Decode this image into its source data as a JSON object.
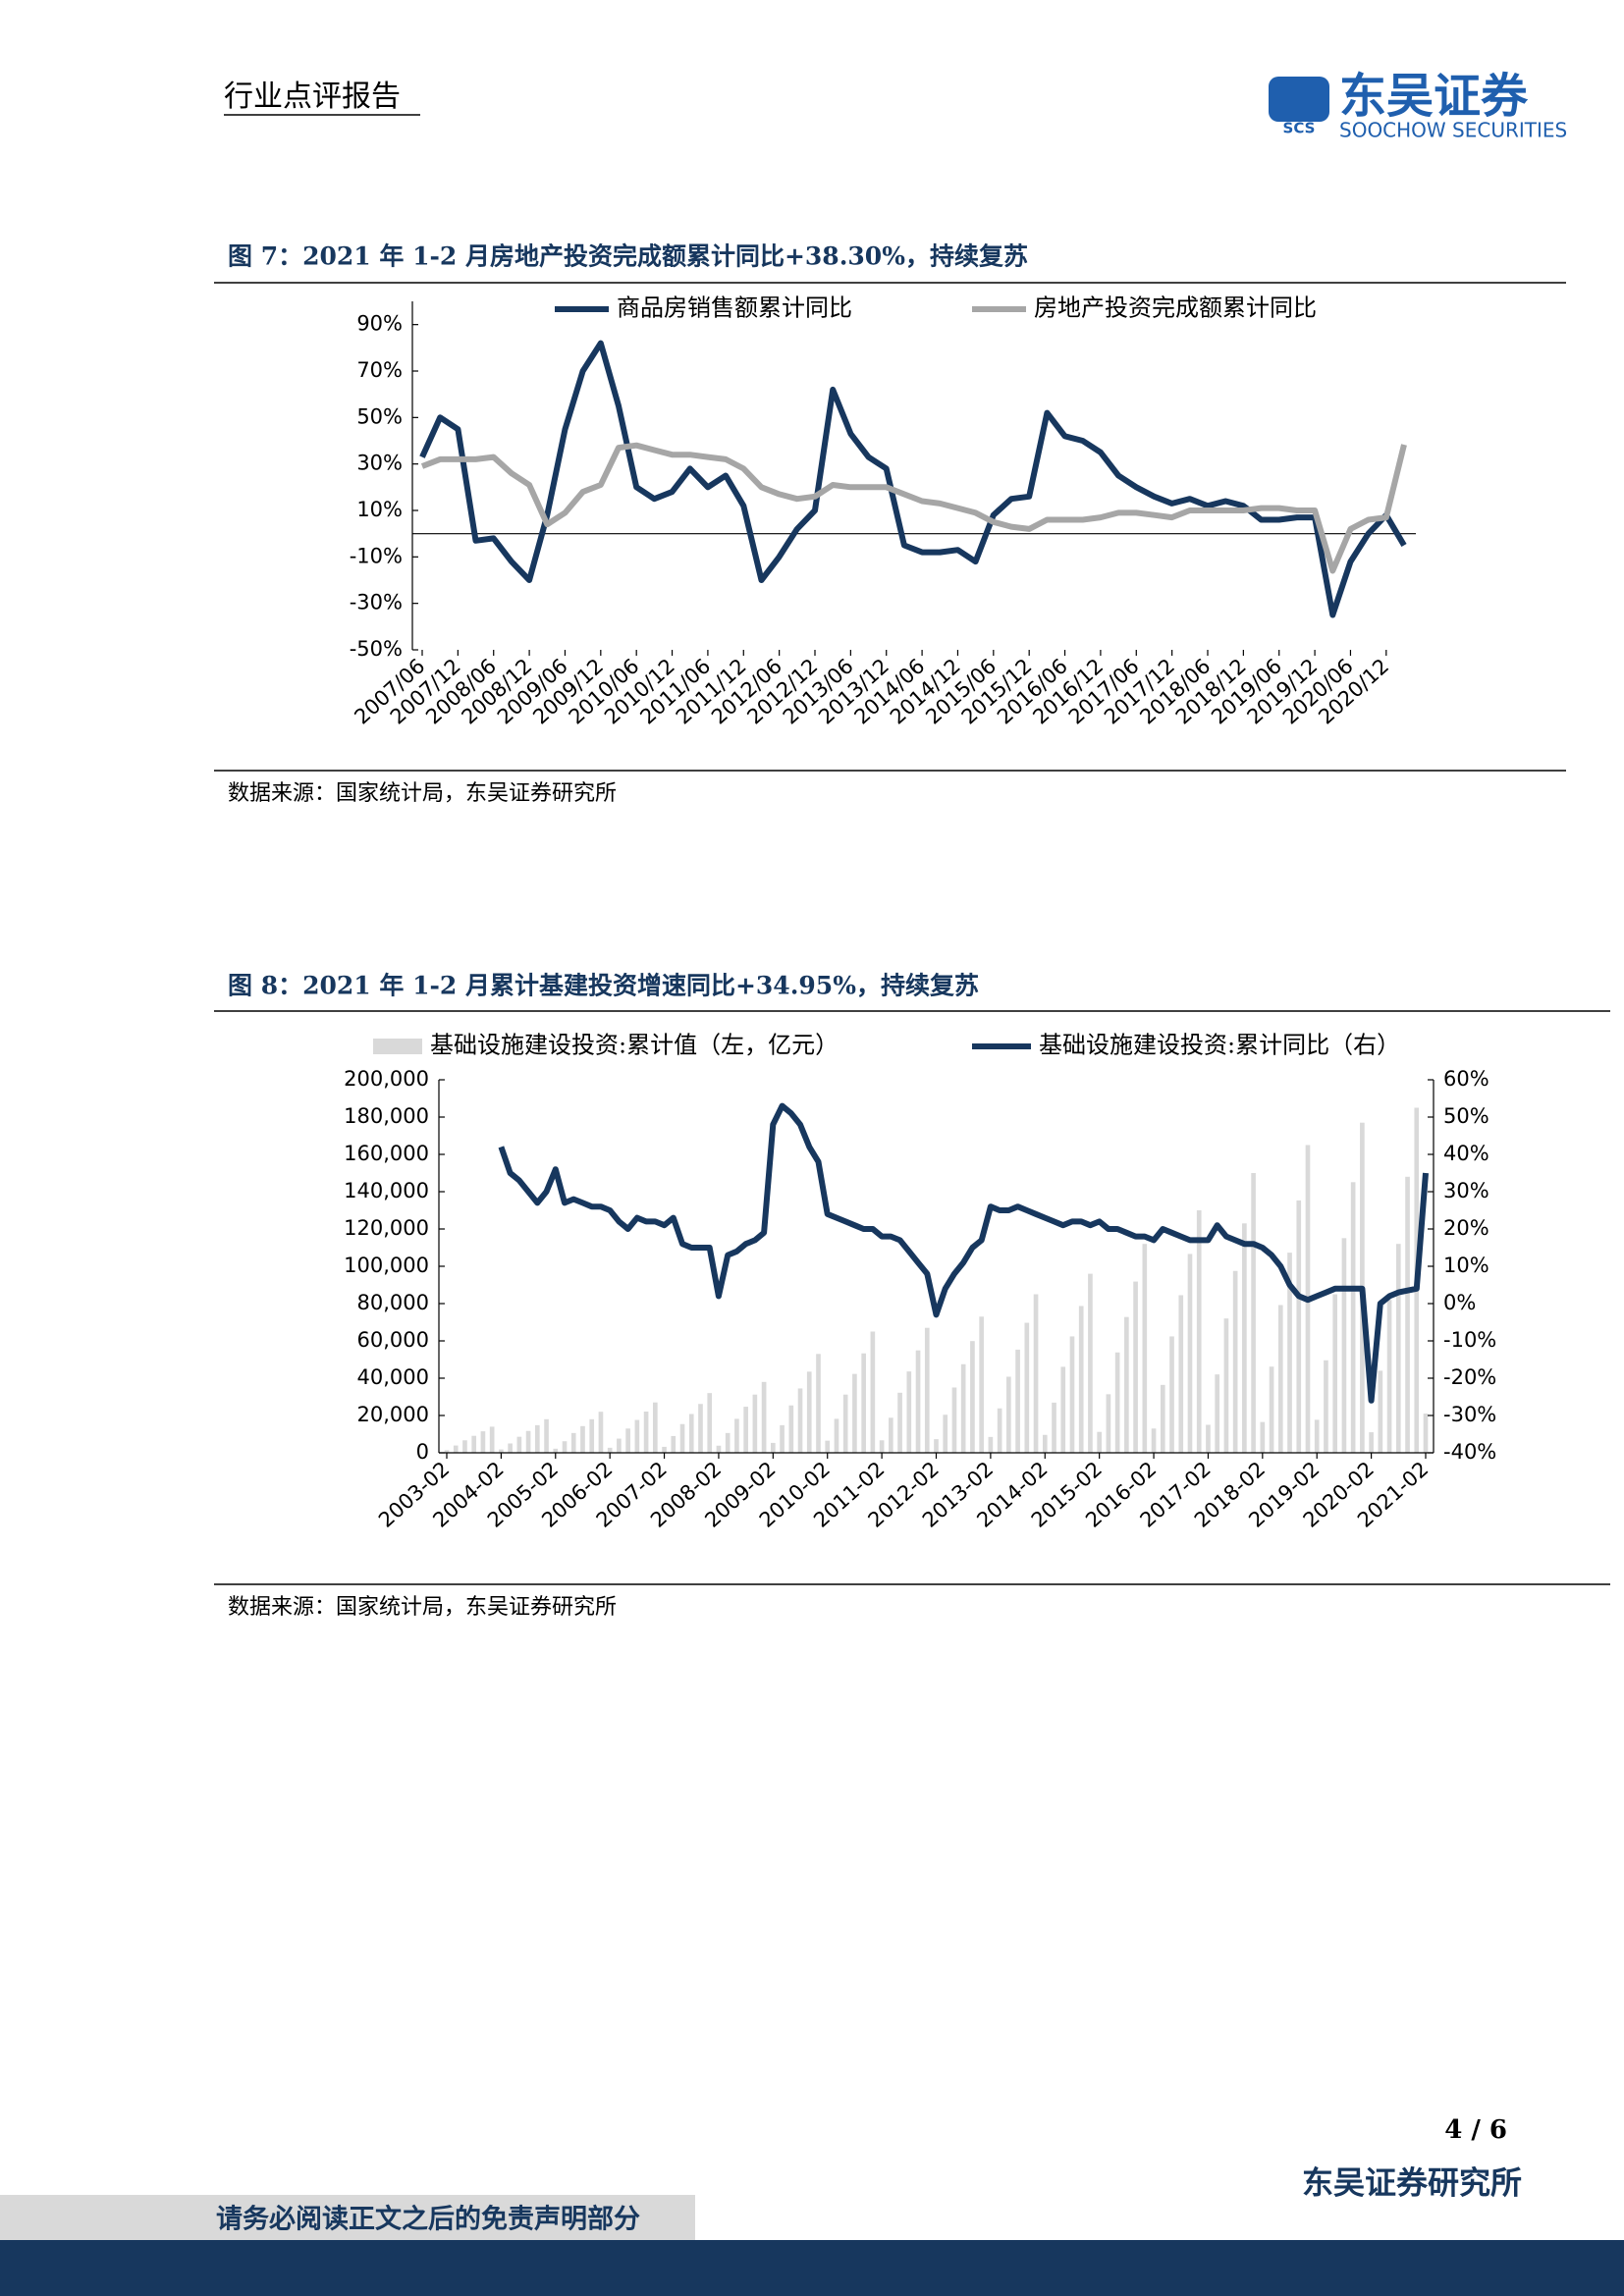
{
  "header": {
    "report_type": "行业点评报告",
    "logo_abbr": "SCS",
    "logo_cn": "东吴证券",
    "logo_en": "SOOCHOW SECURITIES"
  },
  "chart_data": [
    {
      "type": "line",
      "title": "图 7：2021 年 1-2 月房地产投资完成额累计同比+38.30%，持续复苏",
      "source": "数据来源：国家统计局，东吴证券研究所",
      "categories": [
        "2007/06",
        null,
        "2007/12",
        null,
        "2008/06",
        null,
        "2008/12",
        null,
        "2009/06",
        null,
        "2009/12",
        null,
        "2010/06",
        null,
        "2010/12",
        null,
        "2011/06",
        null,
        "2011/12",
        null,
        "2012/06",
        null,
        "2012/12",
        null,
        "2013/06",
        null,
        "2013/12",
        null,
        "2014/06",
        null,
        "2014/12",
        null,
        "2015/06",
        null,
        "2015/12",
        null,
        "2016/06",
        null,
        "2016/12",
        null,
        "2017/06",
        null,
        "2017/12",
        null,
        "2018/06",
        null,
        "2018/12",
        null,
        "2019/06",
        null,
        "2019/12",
        null,
        "2020/06",
        null,
        "2020/12",
        null
      ],
      "series": [
        {
          "name": "商品房销售额累计同比",
          "color": "#17375e",
          "values": [
            33,
            50,
            45,
            -3,
            -2,
            -12,
            -20,
            8,
            45,
            70,
            82,
            55,
            20,
            15,
            18,
            28,
            20,
            25,
            12,
            -20,
            -10,
            2,
            10,
            62,
            43,
            33,
            28,
            -5,
            -8,
            -8,
            -7,
            -12,
            8,
            15,
            16,
            52,
            42,
            40,
            35,
            25,
            20,
            16,
            13,
            15,
            12,
            14,
            12,
            6,
            6,
            7,
            7,
            -35,
            -12,
            0,
            8,
            -5
          ]
        },
        {
          "name": "房地产投资完成额累计同比",
          "color": "#a6a6a6",
          "values": [
            29,
            32,
            32,
            32,
            33,
            26,
            21,
            4,
            9,
            18,
            21,
            37,
            38,
            36,
            34,
            34,
            33,
            32,
            28,
            20,
            17,
            15,
            16,
            21,
            20,
            20,
            20,
            17,
            14,
            13,
            11,
            9,
            5,
            3,
            2,
            6,
            6,
            6,
            7,
            9,
            9,
            8,
            7,
            10,
            10,
            10,
            10,
            11,
            11,
            10,
            10,
            -16,
            2,
            6,
            7,
            38.3
          ]
        }
      ],
      "ylim": [
        -50,
        100
      ],
      "yticks": [
        {
          "value": -50,
          "label": "-50%"
        },
        {
          "value": -30,
          "label": "-30%"
        },
        {
          "value": -10,
          "label": "-10%"
        },
        {
          "value": 10,
          "label": "10%"
        },
        {
          "value": 30,
          "label": "30%"
        },
        {
          "value": 50,
          "label": "50%"
        },
        {
          "value": 70,
          "label": "70%"
        },
        {
          "value": 90,
          "label": "90%"
        }
      ],
      "grid": false
    },
    {
      "type": "combo",
      "title": "图 8：2021 年 1-2 月累计基建投资增速同比+34.95%，持续复苏",
      "source": "数据来源：国家统计局，东吴证券研究所",
      "categories": [
        "2003-02",
        null,
        null,
        null,
        null,
        null,
        "2004-02",
        null,
        null,
        null,
        null,
        null,
        "2005-02",
        null,
        null,
        null,
        null,
        null,
        "2006-02",
        null,
        null,
        null,
        null,
        null,
        "2007-02",
        null,
        null,
        null,
        null,
        null,
        "2008-02",
        null,
        null,
        null,
        null,
        null,
        "2009-02",
        null,
        null,
        null,
        null,
        null,
        "2010-02",
        null,
        null,
        null,
        null,
        null,
        "2011-02",
        null,
        null,
        null,
        null,
        null,
        "2012-02",
        null,
        null,
        null,
        null,
        null,
        "2013-02",
        null,
        null,
        null,
        null,
        null,
        "2014-02",
        null,
        null,
        null,
        null,
        null,
        "2015-02",
        null,
        null,
        null,
        null,
        null,
        "2016-02",
        null,
        null,
        null,
        null,
        null,
        "2017-02",
        null,
        null,
        null,
        null,
        null,
        "2018-02",
        null,
        null,
        null,
        null,
        null,
        "2019-02",
        null,
        null,
        null,
        null,
        null,
        "2020-02",
        null,
        null,
        null,
        null,
        null,
        "2021-02"
      ],
      "series": [
        {
          "name": "基础设施建设投资:累计值（左，亿元）",
          "type": "bar",
          "color": "#d9d9d9",
          "values": [
            1400,
            3900,
            6700,
            9100,
            11500,
            14000,
            1800,
            5000,
            8600,
            11700,
            14800,
            18000,
            2200,
            6200,
            10600,
            14300,
            18000,
            22000,
            2700,
            7600,
            13000,
            17600,
            22100,
            27000,
            3200,
            9000,
            15400,
            20800,
            26200,
            32000,
            3800,
            10600,
            18200,
            24700,
            31200,
            38000,
            5300,
            14800,
            25400,
            34500,
            43500,
            53000,
            6500,
            18200,
            31200,
            42300,
            53300,
            65000,
            6700,
            18800,
            32200,
            43600,
            54900,
            67000,
            7300,
            20400,
            35000,
            47500,
            59900,
            73000,
            8500,
            23800,
            40800,
            55300,
            69700,
            85000,
            9600,
            26900,
            46100,
            62400,
            78700,
            96000,
            11200,
            31400,
            53800,
            72800,
            91800,
            112000,
            13000,
            36400,
            62400,
            84500,
            106600,
            130000,
            15000,
            42000,
            72000,
            97500,
            123000,
            150000,
            16500,
            46200,
            79200,
            107300,
            135300,
            165000,
            17700,
            49600,
            85000,
            115100,
            145100,
            177000,
            11000,
            44000,
            82000,
            112000,
            148000,
            185000,
            21000
          ]
        },
        {
          "name": "基础设施建设投资:累计同比（右）",
          "type": "line",
          "axis": "y2",
          "color": "#17375e",
          "values": [
            null,
            null,
            null,
            null,
            null,
            null,
            42,
            35,
            33,
            30,
            27,
            30,
            36,
            27,
            28,
            27,
            26,
            26,
            25,
            22,
            20,
            23,
            22,
            22,
            21,
            23,
            16,
            15,
            15,
            15,
            2,
            13,
            14,
            16,
            17,
            19,
            48,
            53,
            51,
            48,
            42,
            38,
            24,
            23,
            22,
            21,
            20,
            20,
            18,
            18,
            17,
            14,
            11,
            8,
            -3,
            4,
            8,
            11,
            15,
            17,
            26,
            25,
            25,
            26,
            25,
            24,
            23,
            22,
            21,
            22,
            22,
            21,
            22,
            20,
            20,
            19,
            18,
            18,
            17,
            20,
            19,
            18,
            17,
            17,
            17,
            21,
            18,
            17,
            16,
            16,
            15,
            13,
            10,
            5,
            2,
            1,
            2,
            3,
            4,
            4,
            4,
            4,
            -26,
            0,
            2,
            3,
            3.5,
            4,
            35
          ]
        }
      ],
      "ylim": [
        0,
        200000
      ],
      "yticks": [
        0,
        {
          "value": 20000,
          "label": "20,000"
        },
        {
          "value": 40000,
          "label": "40,000"
        },
        {
          "value": 60000,
          "label": "60,000"
        },
        {
          "value": 80000,
          "label": "80,000"
        },
        {
          "value": 100000,
          "label": "100,000"
        },
        {
          "value": 120000,
          "label": "120,000"
        },
        {
          "value": 140000,
          "label": "140,000"
        },
        {
          "value": 160000,
          "label": "160,000"
        },
        {
          "value": 180000,
          "label": "180,000"
        },
        {
          "value": 200000,
          "label": "200,000"
        }
      ],
      "y2lim": [
        -40,
        60
      ],
      "y2ticks": [
        {
          "value": -40,
          "label": "-40%"
        },
        {
          "value": -30,
          "label": "-30%"
        },
        {
          "value": -20,
          "label": "-20%"
        },
        {
          "value": -10,
          "label": "-10%"
        },
        {
          "value": 0,
          "label": "0%"
        },
        {
          "value": 10,
          "label": "10%"
        },
        {
          "value": 20,
          "label": "20%"
        },
        {
          "value": 30,
          "label": "30%"
        },
        {
          "value": 40,
          "label": "40%"
        },
        {
          "value": 50,
          "label": "50%"
        },
        {
          "value": 60,
          "label": "60%"
        }
      ],
      "grid": false
    }
  ],
  "footer": {
    "page": "4 / 6",
    "institute": "东吴证券研究所",
    "disclaimer": "请务必阅读正文之后的免责声明部分"
  }
}
